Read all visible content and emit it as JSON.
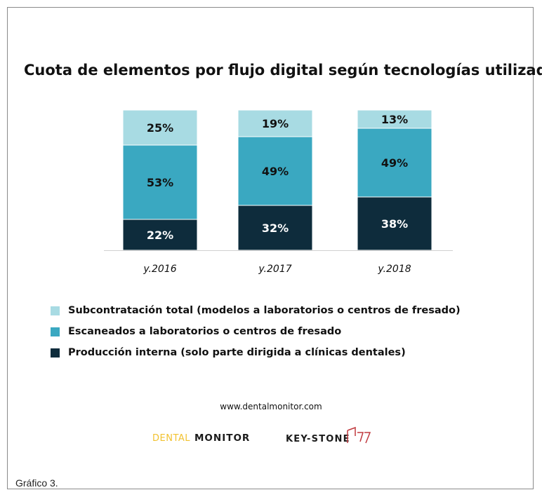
{
  "title": "Cuota de elementos por flujo digital según tecnologías utilizadas",
  "legend": [
    {
      "label": "Subcontratación total (modelos a laboratorios o centros de fresado)",
      "color": "#a8dbe3"
    },
    {
      "label": "Escaneados a laboratorios o centros de fresado",
      "color": "#3aa8c1"
    },
    {
      "label": "Producción interna (solo parte dirigida a clínicas dentales)",
      "color": "#0e2c3c"
    }
  ],
  "website": "www.dentalmonitor.com",
  "logos": {
    "dental_monitor": "DENTAL MONITOR",
    "keystone": "KEY-STONE"
  },
  "caption": "Gráfico 3.",
  "chart_data": {
    "type": "bar",
    "stacked": true,
    "percent": true,
    "categories": [
      "y.2016",
      "y.2017",
      "y.2018"
    ],
    "series": [
      {
        "name": "Producción interna (solo parte dirigida a clínicas dentales)",
        "values": [
          22,
          32,
          38
        ],
        "color": "#0e2c3c",
        "label_color": "#ffffff"
      },
      {
        "name": "Escaneados a laboratorios o centros de fresado",
        "values": [
          53,
          49,
          49
        ],
        "color": "#3aa8c1",
        "label_color": "#111111"
      },
      {
        "name": "Subcontratación total (modelos a laboratorios o centros de fresado)",
        "values": [
          25,
          19,
          13
        ],
        "color": "#a8dbe3",
        "label_color": "#111111"
      }
    ],
    "ylim": [
      0,
      100
    ],
    "title": "Cuota de elementos por flujo digital según tecnologías utilizadas",
    "xlabel": "",
    "ylabel": "",
    "grid": false,
    "legend_position": "bottom"
  }
}
